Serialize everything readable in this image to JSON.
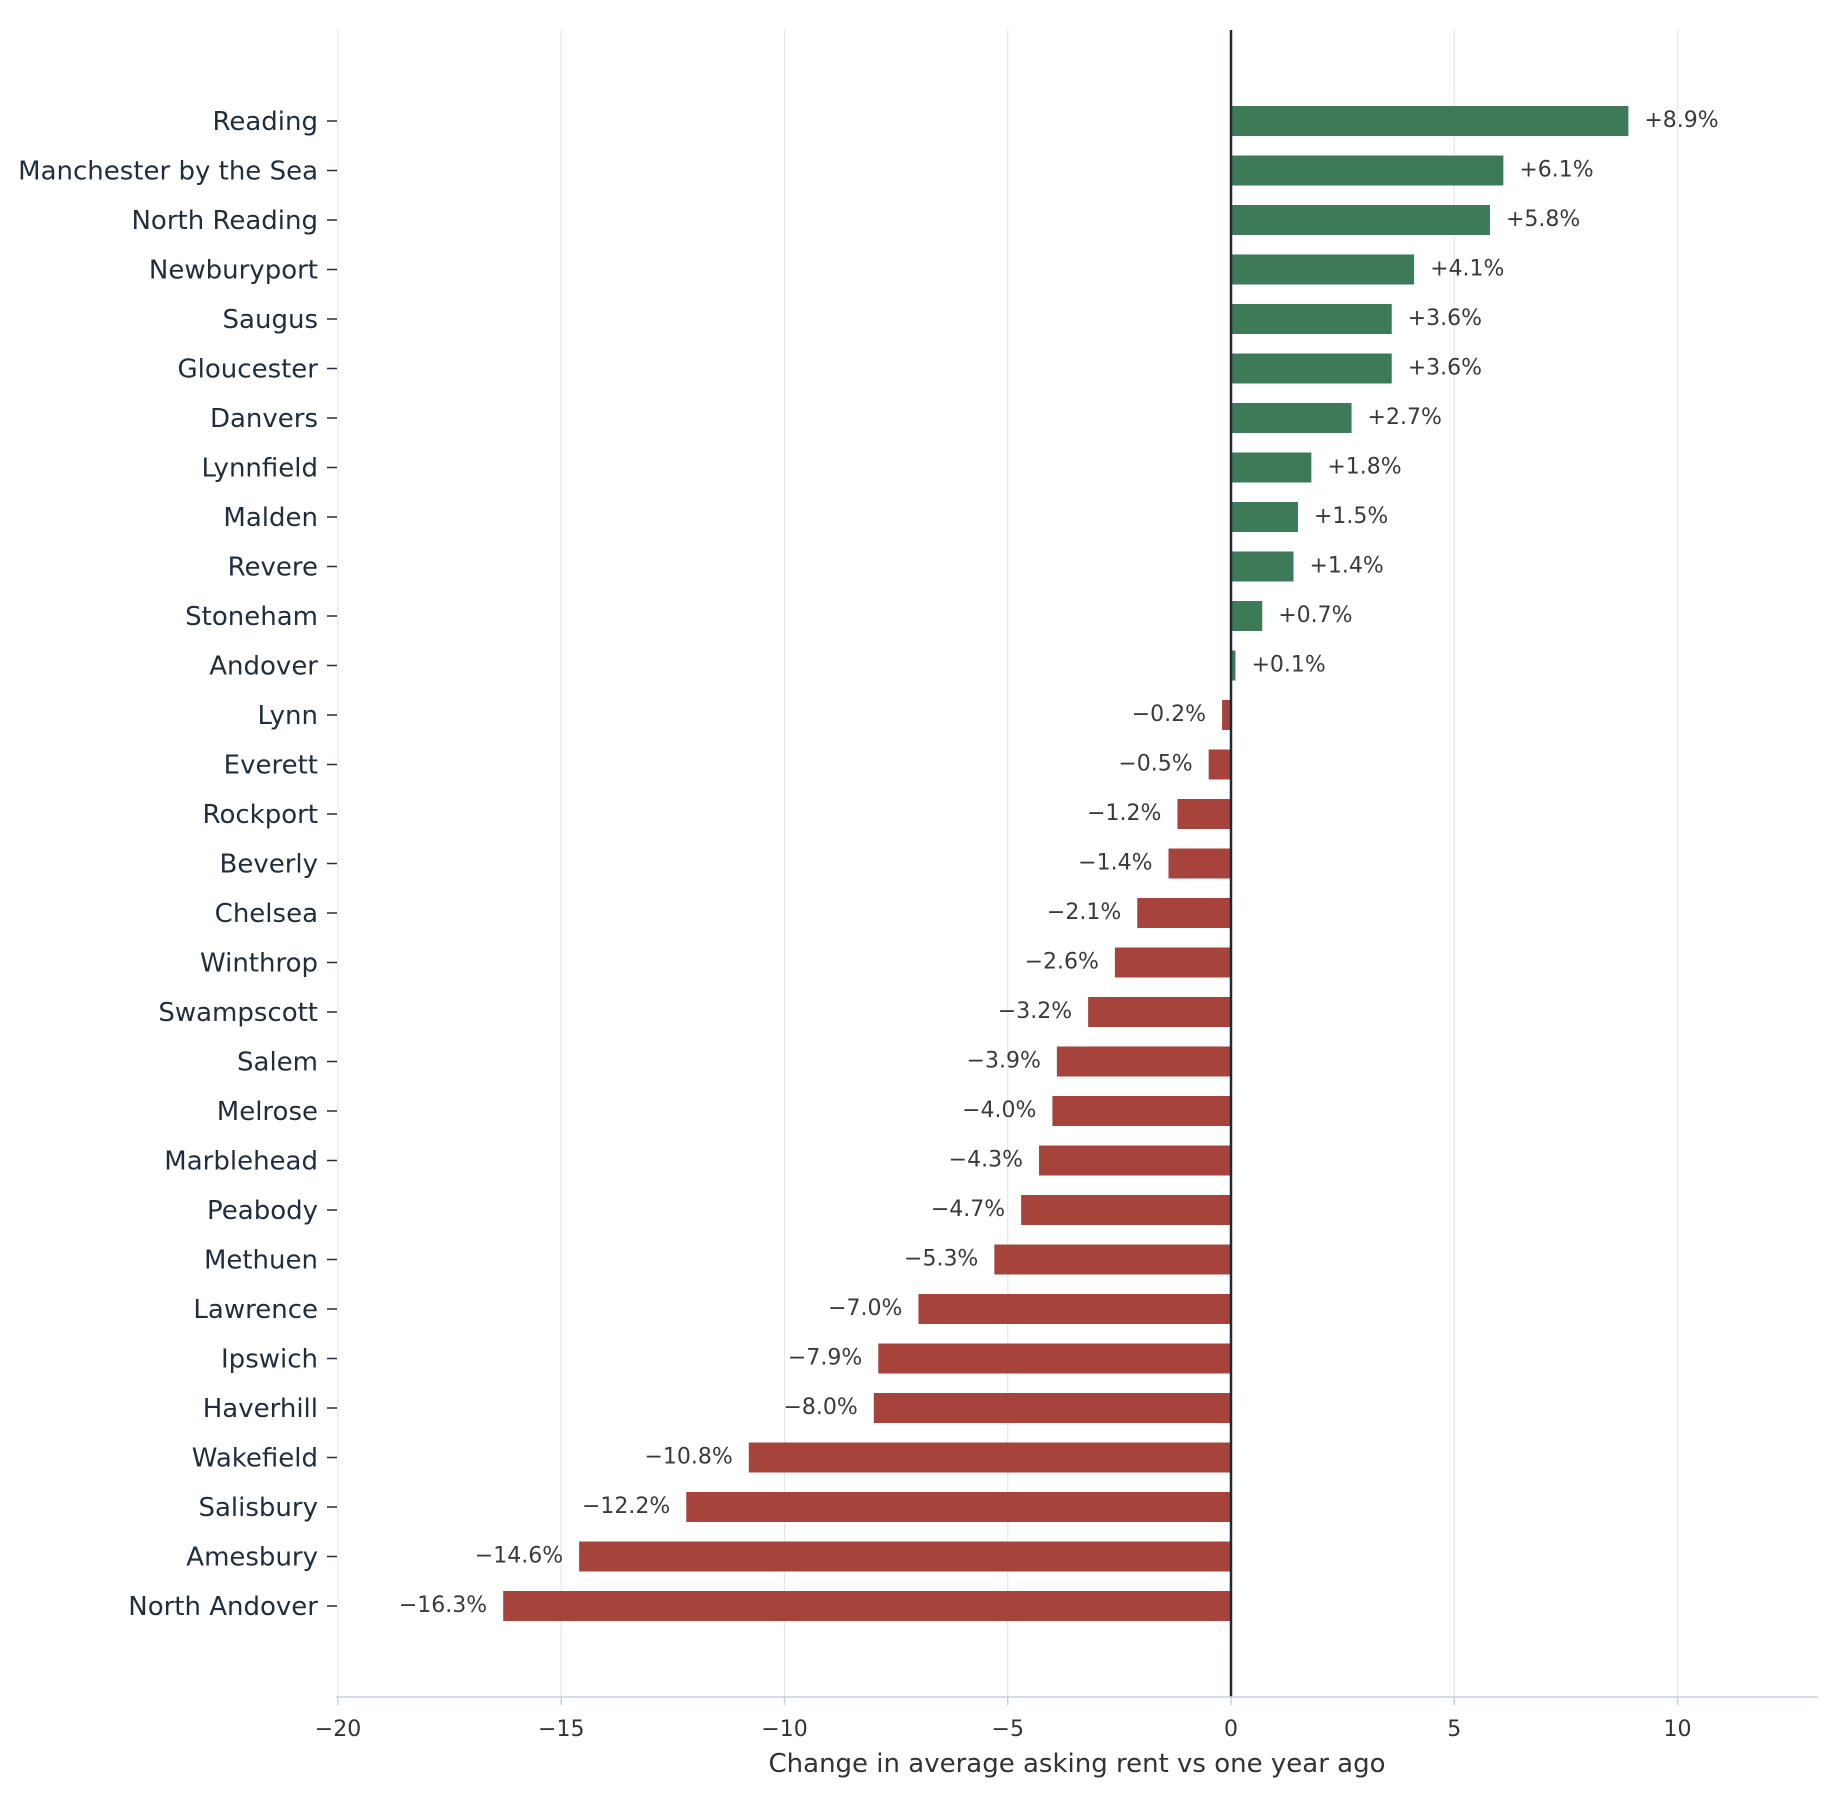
{
  "chart_data": {
    "type": "bar",
    "orientation": "horizontal",
    "xlabel": "Change in average asking rent vs one year ago",
    "xlim": [
      -20,
      12.5
    ],
    "xticks": [
      -20,
      -15,
      -10,
      -5,
      0,
      5,
      10
    ],
    "grid": true,
    "legend": "none",
    "colors": {
      "positive": "#3d7a57",
      "negative": "#a6443c",
      "zero_line": "#1c2b3a",
      "grid": "#e6e6e6",
      "axis": "#c8d0dc"
    },
    "categories": [
      "Reading",
      "Manchester by the Sea",
      "North Reading",
      "Newburyport",
      "Saugus",
      "Gloucester",
      "Danvers",
      "Lynnfield",
      "Malden",
      "Revere",
      "Stoneham",
      "Andover",
      "Lynn",
      "Everett",
      "Rockport",
      "Beverly",
      "Chelsea",
      "Winthrop",
      "Swampscott",
      "Salem",
      "Melrose",
      "Marblehead",
      "Peabody",
      "Methuen",
      "Lawrence",
      "Ipswich",
      "Haverhill",
      "Wakefield",
      "Salisbury",
      "Amesbury",
      "North Andover"
    ],
    "values": [
      8.9,
      6.1,
      5.8,
      4.1,
      3.6,
      3.6,
      2.7,
      1.8,
      1.5,
      1.4,
      0.7,
      0.1,
      -0.2,
      -0.5,
      -1.2,
      -1.4,
      -2.1,
      -2.6,
      -3.2,
      -3.9,
      -4.0,
      -4.3,
      -4.7,
      -5.3,
      -7.0,
      -7.9,
      -8.0,
      -10.8,
      -12.2,
      -14.6,
      -16.3
    ],
    "data_labels": [
      "+8.9%",
      "+6.1%",
      "+5.8%",
      "+4.1%",
      "+3.6%",
      "+3.6%",
      "+2.7%",
      "+1.8%",
      "+1.5%",
      "+1.4%",
      "+0.7%",
      "+0.1%",
      "-0.2%",
      "-0.5%",
      "-1.2%",
      "-1.4%",
      "-2.1%",
      "-2.6%",
      "-3.2%",
      "-3.9%",
      "-4.0%",
      "-4.3%",
      "-4.7%",
      "-5.3%",
      "-7.0%",
      "-7.9%",
      "-8.0%",
      "-10.8%",
      "-12.2%",
      "-14.6%",
      "-16.3%"
    ]
  }
}
